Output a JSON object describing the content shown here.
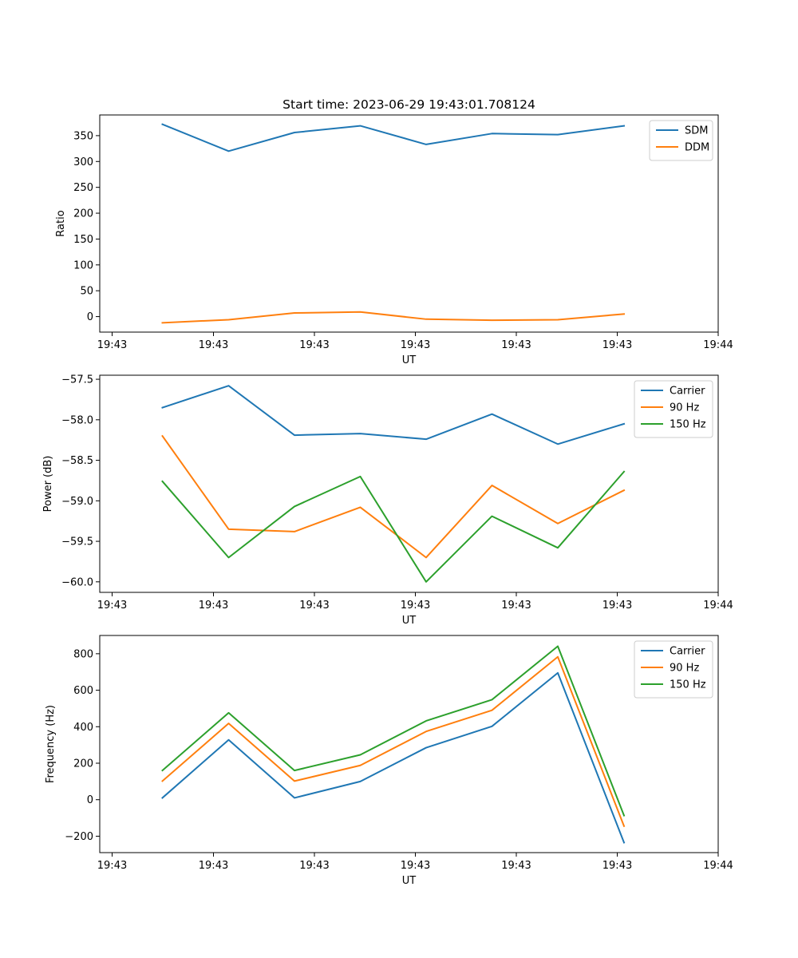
{
  "figure_title": "Start time: 2023-06-29 19:43:01.708124",
  "chart_data": [
    {
      "type": "line",
      "title": "Start time: 2023-06-29 19:43:01.708124",
      "xlabel": "UT",
      "ylabel": "Ratio",
      "x_tick_labels": [
        "19:43",
        "19:43",
        "19:43",
        "19:43",
        "19:43",
        "19:43",
        "19:44"
      ],
      "ylim": [
        -30,
        390
      ],
      "y_ticks": [
        0,
        50,
        100,
        150,
        200,
        250,
        300,
        350
      ],
      "legend_position": "top-right",
      "series": [
        {
          "name": "SDM",
          "color": "#1f77b4",
          "values": [
            372,
            320,
            356,
            369,
            333,
            354,
            352,
            369
          ]
        },
        {
          "name": "DDM",
          "color": "#ff7f0e",
          "values": [
            -12,
            -6,
            7,
            9,
            -5,
            -7,
            -6,
            5
          ]
        }
      ]
    },
    {
      "type": "line",
      "title": "",
      "xlabel": "UT",
      "ylabel": "Power (dB)",
      "x_tick_labels": [
        "19:43",
        "19:43",
        "19:43",
        "19:43",
        "19:43",
        "19:43",
        "19:44"
      ],
      "ylim": [
        -60.13,
        -57.45
      ],
      "y_ticks": [
        -57.5,
        -58.0,
        -58.5,
        -59.0,
        -59.5,
        -60.0
      ],
      "y_tick_labels": [
        "−57.5",
        "−58.0",
        "−58.5",
        "−59.0",
        "−59.5",
        "−60.0"
      ],
      "legend_position": "top-right",
      "series": [
        {
          "name": "Carrier",
          "color": "#1f77b4",
          "values": [
            -57.85,
            -57.58,
            -58.19,
            -58.17,
            -58.24,
            -57.93,
            -58.3,
            -58.05
          ]
        },
        {
          "name": "90 Hz",
          "color": "#ff7f0e",
          "values": [
            -58.2,
            -59.35,
            -59.38,
            -59.08,
            -59.7,
            -58.81,
            -59.28,
            -58.87
          ]
        },
        {
          "name": "150 Hz",
          "color": "#2ca02c",
          "values": [
            -58.76,
            -59.7,
            -59.07,
            -58.7,
            -60.0,
            -59.19,
            -59.58,
            -58.64
          ]
        }
      ]
    },
    {
      "type": "line",
      "title": "",
      "xlabel": "UT",
      "ylabel": "Frequency (Hz)",
      "x_tick_labels": [
        "19:43",
        "19:43",
        "19:43",
        "19:43",
        "19:43",
        "19:43",
        "19:44"
      ],
      "ylim": [
        -290,
        900
      ],
      "y_ticks": [
        800,
        600,
        400,
        200,
        0,
        -200
      ],
      "y_tick_labels": [
        "800",
        "600",
        "400",
        "200",
        "0",
        "−200"
      ],
      "legend_position": "top-right",
      "series": [
        {
          "name": "Carrier",
          "color": "#1f77b4",
          "values": [
            10,
            328,
            10,
            100,
            285,
            402,
            695,
            -235
          ]
        },
        {
          "name": "90 Hz",
          "color": "#ff7f0e",
          "values": [
            102,
            418,
            102,
            188,
            374,
            490,
            783,
            -145
          ]
        },
        {
          "name": "150 Hz",
          "color": "#2ca02c",
          "values": [
            160,
            476,
            160,
            246,
            432,
            548,
            841,
            -87
          ]
        }
      ]
    }
  ]
}
